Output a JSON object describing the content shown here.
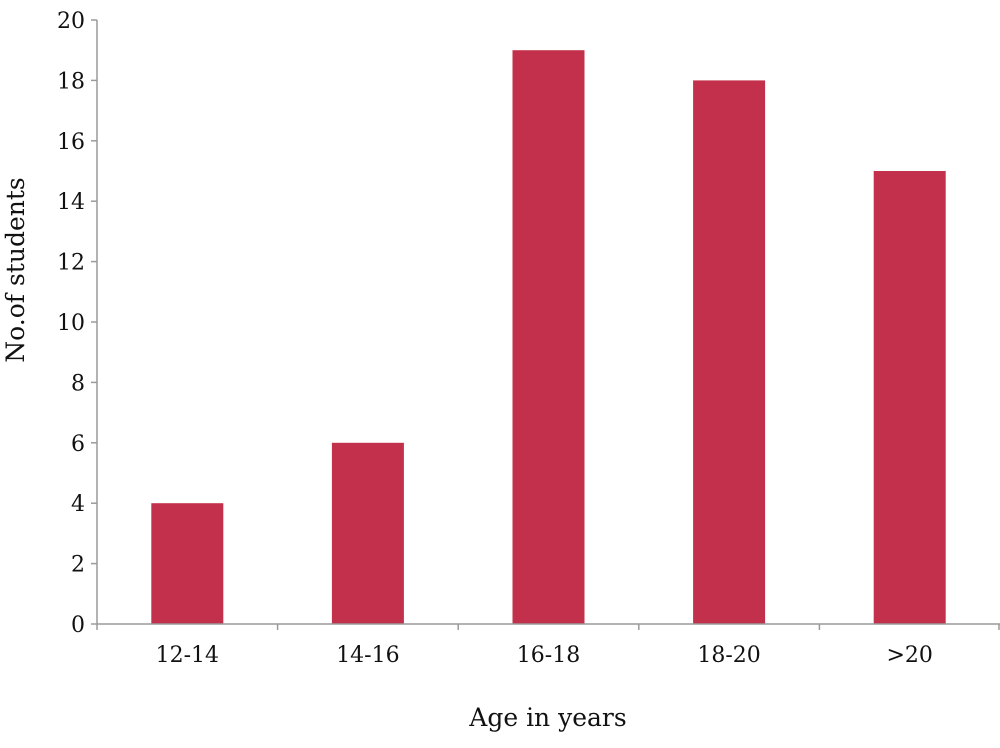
{
  "chart_data": {
    "type": "bar",
    "categories": [
      "12-14",
      "14-16",
      "16-18",
      "18-20",
      ">20"
    ],
    "values": [
      4,
      6,
      19,
      18,
      15
    ],
    "title": "",
    "xlabel": "Age in years",
    "ylabel": "No.of students",
    "ylim": [
      0,
      20
    ],
    "yticks": [
      0,
      2,
      4,
      6,
      8,
      10,
      12,
      14,
      16,
      18,
      20
    ],
    "grid": false,
    "legend": "none",
    "bar_color": "#c3304b",
    "axis_color": "#9a9a9a"
  }
}
